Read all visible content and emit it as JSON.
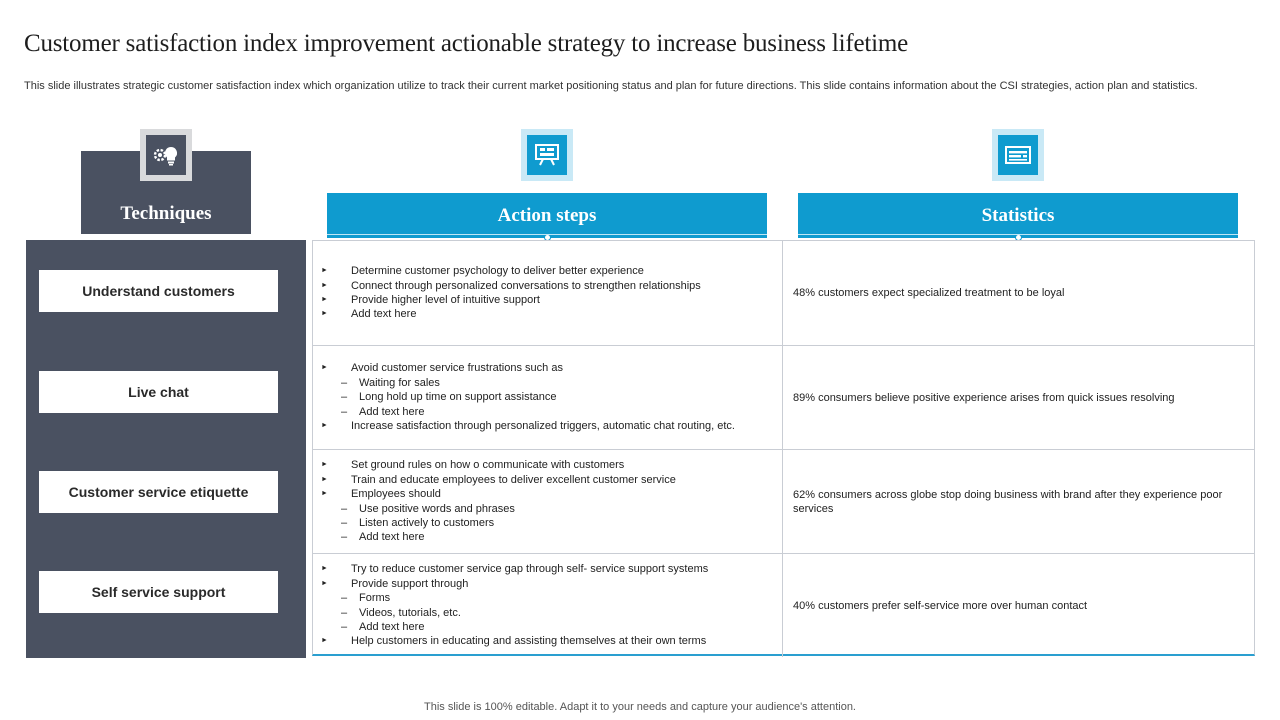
{
  "title": "Customer satisfaction index improvement actionable strategy to increase business lifetime",
  "subtitle": "This slide illustrates strategic customer satisfaction index which organization utilize to track their current market positioning status and plan for future directions. This slide contains information about the CSI strategies, action plan and statistics.",
  "headers": {
    "techniques": "Techniques",
    "action_steps": "Action steps",
    "statistics": "Statistics"
  },
  "icons": {
    "techniques": "gear-bulb-icon",
    "action_steps": "presentation-board-icon",
    "statistics": "document-list-icon"
  },
  "colors": {
    "dark": "#4a5161",
    "accent": "#0f9bcf"
  },
  "rows": [
    {
      "technique": "Understand customers",
      "actions": [
        {
          "level": 1,
          "text": "Determine customer psychology to deliver better experience"
        },
        {
          "level": 1,
          "text": "Connect through personalized conversations to strengthen relationships"
        },
        {
          "level": 1,
          "text": "Provide higher level of intuitive support"
        },
        {
          "level": 1,
          "text": "Add text here"
        }
      ],
      "statistic": "48% customers expect specialized treatment to be loyal"
    },
    {
      "technique": "Live chat",
      "actions": [
        {
          "level": 1,
          "text": "Avoid customer service frustrations such as"
        },
        {
          "level": 2,
          "text": "Waiting for sales"
        },
        {
          "level": 2,
          "text": "Long hold up time on support assistance"
        },
        {
          "level": 2,
          "text": "Add text here"
        },
        {
          "level": 1,
          "text": "Increase satisfaction through personalized triggers, automatic chat routing, etc."
        }
      ],
      "statistic": "89% consumers believe positive experience arises from quick issues resolving"
    },
    {
      "technique": "Customer service etiquette",
      "actions": [
        {
          "level": 1,
          "text": "Set ground rules on how o communicate with customers"
        },
        {
          "level": 1,
          "text": "Train and educate employees to deliver excellent customer service"
        },
        {
          "level": 1,
          "text": "Employees should"
        },
        {
          "level": 2,
          "text": "Use positive words and phrases"
        },
        {
          "level": 2,
          "text": "Listen actively to customers"
        },
        {
          "level": 2,
          "text": "Add text here"
        }
      ],
      "statistic": "62% consumers across globe stop doing business with brand after they experience poor services"
    },
    {
      "technique": "Self service support",
      "actions": [
        {
          "level": 1,
          "text": "Try to reduce customer service gap through self- service support systems"
        },
        {
          "level": 1,
          "text": "Provide support through"
        },
        {
          "level": 2,
          "text": "Forms"
        },
        {
          "level": 2,
          "text": "Videos, tutorials, etc."
        },
        {
          "level": 2,
          "text": "Add text here"
        },
        {
          "level": 1,
          "text": "Help customers in educating and assisting themselves at their own terms"
        }
      ],
      "statistic": "40% customers prefer self-service more over human contact"
    }
  ],
  "footer": "This slide is 100% editable. Adapt it to your needs and capture your audience's attention."
}
